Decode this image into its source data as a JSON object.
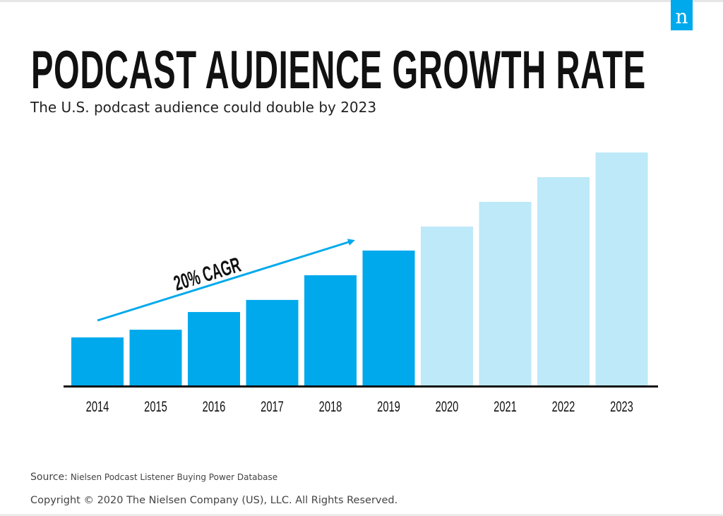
{
  "logo": "n",
  "chart_data": {
    "type": "bar",
    "title": "PODCAST AUDIENCE GROWTH RATE",
    "subtitle": "The U.S. podcast audience could double by 2023",
    "categories": [
      "2014",
      "2015",
      "2016",
      "2017",
      "2018",
      "2019",
      "2020",
      "2021",
      "2022",
      "2023"
    ],
    "values": [
      20.6,
      23.9,
      31.5,
      36.7,
      47.3,
      57.9,
      68.2,
      78.8,
      89.4,
      100
    ],
    "value_note_scale": "relative index, 2023 = 100 (no axis values printed)",
    "projected_from": "2020",
    "annotation": "20% CAGR",
    "colors": {
      "actual": "#00a9ec",
      "projected": "#bde9f8",
      "axis": "#111111"
    },
    "grid": false,
    "legend": "none"
  },
  "footer": {
    "source_label": "Source:",
    "source_value": "Nielsen Podcast Listener Buying Power Database",
    "copyright": "Copyright © 2020 The Nielsen Company (US), LLC. All Rights Reserved."
  }
}
